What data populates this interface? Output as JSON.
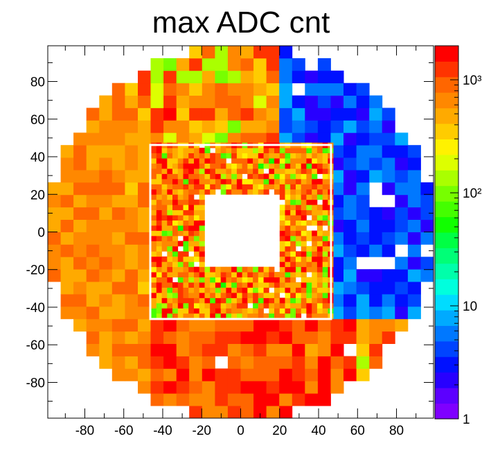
{
  "chart_data": {
    "type": "heatmap",
    "title": "max ADC cnt",
    "xlabel": "",
    "ylabel": "",
    "xlim": [
      -99,
      99
    ],
    "ylim": [
      -99,
      99
    ],
    "x_ticks": [
      -80,
      -60,
      -40,
      -20,
      0,
      20,
      40,
      60,
      80
    ],
    "x_tick_labels": [
      "-80",
      "-60",
      "-40",
      "-20",
      "0",
      "20",
      "40",
      "60",
      "80"
    ],
    "y_ticks": [
      -80,
      -60,
      -40,
      -20,
      0,
      20,
      40,
      60,
      80
    ],
    "y_tick_labels": [
      "-80",
      "-60",
      "-40",
      "-20",
      "0",
      "20",
      "40",
      "60",
      "80"
    ],
    "color_scale": "log",
    "z_range": [
      1,
      2000
    ],
    "z_tick_values": [
      1,
      10,
      100,
      1000
    ],
    "z_tick_labels": [
      "1",
      "10",
      "10²",
      "10³"
    ],
    "palette": [
      "#7f00ff",
      "#5c00ff",
      "#2800ff",
      "#0011ff",
      "#0044ff",
      "#0078ff",
      "#00aaff",
      "#00dcff",
      "#00ffdd",
      "#00ffaa",
      "#00ff77",
      "#00ff44",
      "#11ff00",
      "#44ff00",
      "#77ff00",
      "#aaff00",
      "#ddff00",
      "#fff200",
      "#ffcc00",
      "#ffaa00",
      "#ff8800",
      "#ff6600",
      "#ff3300",
      "#ff0000"
    ],
    "regions": [
      {
        "name": "outer",
        "bin_size": 6.6,
        "x_range": [
          -99,
          99
        ],
        "y_range": [
          -99,
          99
        ],
        "r_max": 99
      },
      {
        "name": "inner",
        "bin_size": 2.75,
        "x_range": [
          -46,
          46
        ],
        "y_range": [
          -46,
          46
        ],
        "hole": [
          -19,
          19,
          -19,
          19
        ]
      }
    ],
    "zones": [
      {
        "name": "outer-right-upper",
        "x_range": [
          20,
          99
        ],
        "y_range": [
          10,
          99
        ],
        "level": "low",
        "z_range": [
          1,
          8
        ]
      },
      {
        "name": "outer-right-mid",
        "x_range": [
          46,
          99
        ],
        "y_range": [
          -45,
          45
        ],
        "level": "low",
        "z_range": [
          1,
          8
        ]
      },
      {
        "name": "outer-top",
        "x_range": [
          -60,
          40
        ],
        "y_range": [
          60,
          99
        ],
        "level": "mixed",
        "z_range": [
          100,
          1500
        ]
      },
      {
        "name": "outer-left",
        "x_range": [
          -99,
          -46
        ],
        "y_range": [
          -99,
          99
        ],
        "level": "high",
        "z_range": [
          250,
          1000
        ]
      },
      {
        "name": "outer-bottom",
        "x_range": [
          -60,
          60
        ],
        "y_range": [
          -99,
          -46
        ],
        "level": "high",
        "z_range": [
          300,
          1800
        ]
      },
      {
        "name": "inner-ring",
        "x_range": [
          -46,
          46
        ],
        "y_range": [
          -46,
          46
        ],
        "level": "mixed",
        "z_range": [
          60,
          2000
        ]
      }
    ],
    "empty_bins": [
      {
        "x": 70,
        "y": 15
      },
      {
        "x": 76.6,
        "y": 15
      },
      {
        "x": 70,
        "y": 21.6
      },
      {
        "x": 82,
        "y": -8
      },
      {
        "x": 93,
        "y": -8
      },
      {
        "x": 64,
        "y": -19
      },
      {
        "x": 70.6,
        "y": -19
      },
      {
        "x": 77.2,
        "y": -19
      },
      {
        "x": -12,
        "y": -72
      },
      {
        "x": 58,
        "y": -66
      },
      {
        "x": 74,
        "y": -60
      },
      {
        "x": 36,
        "y": 86
      },
      {
        "x": 30,
        "y": 76
      }
    ]
  }
}
